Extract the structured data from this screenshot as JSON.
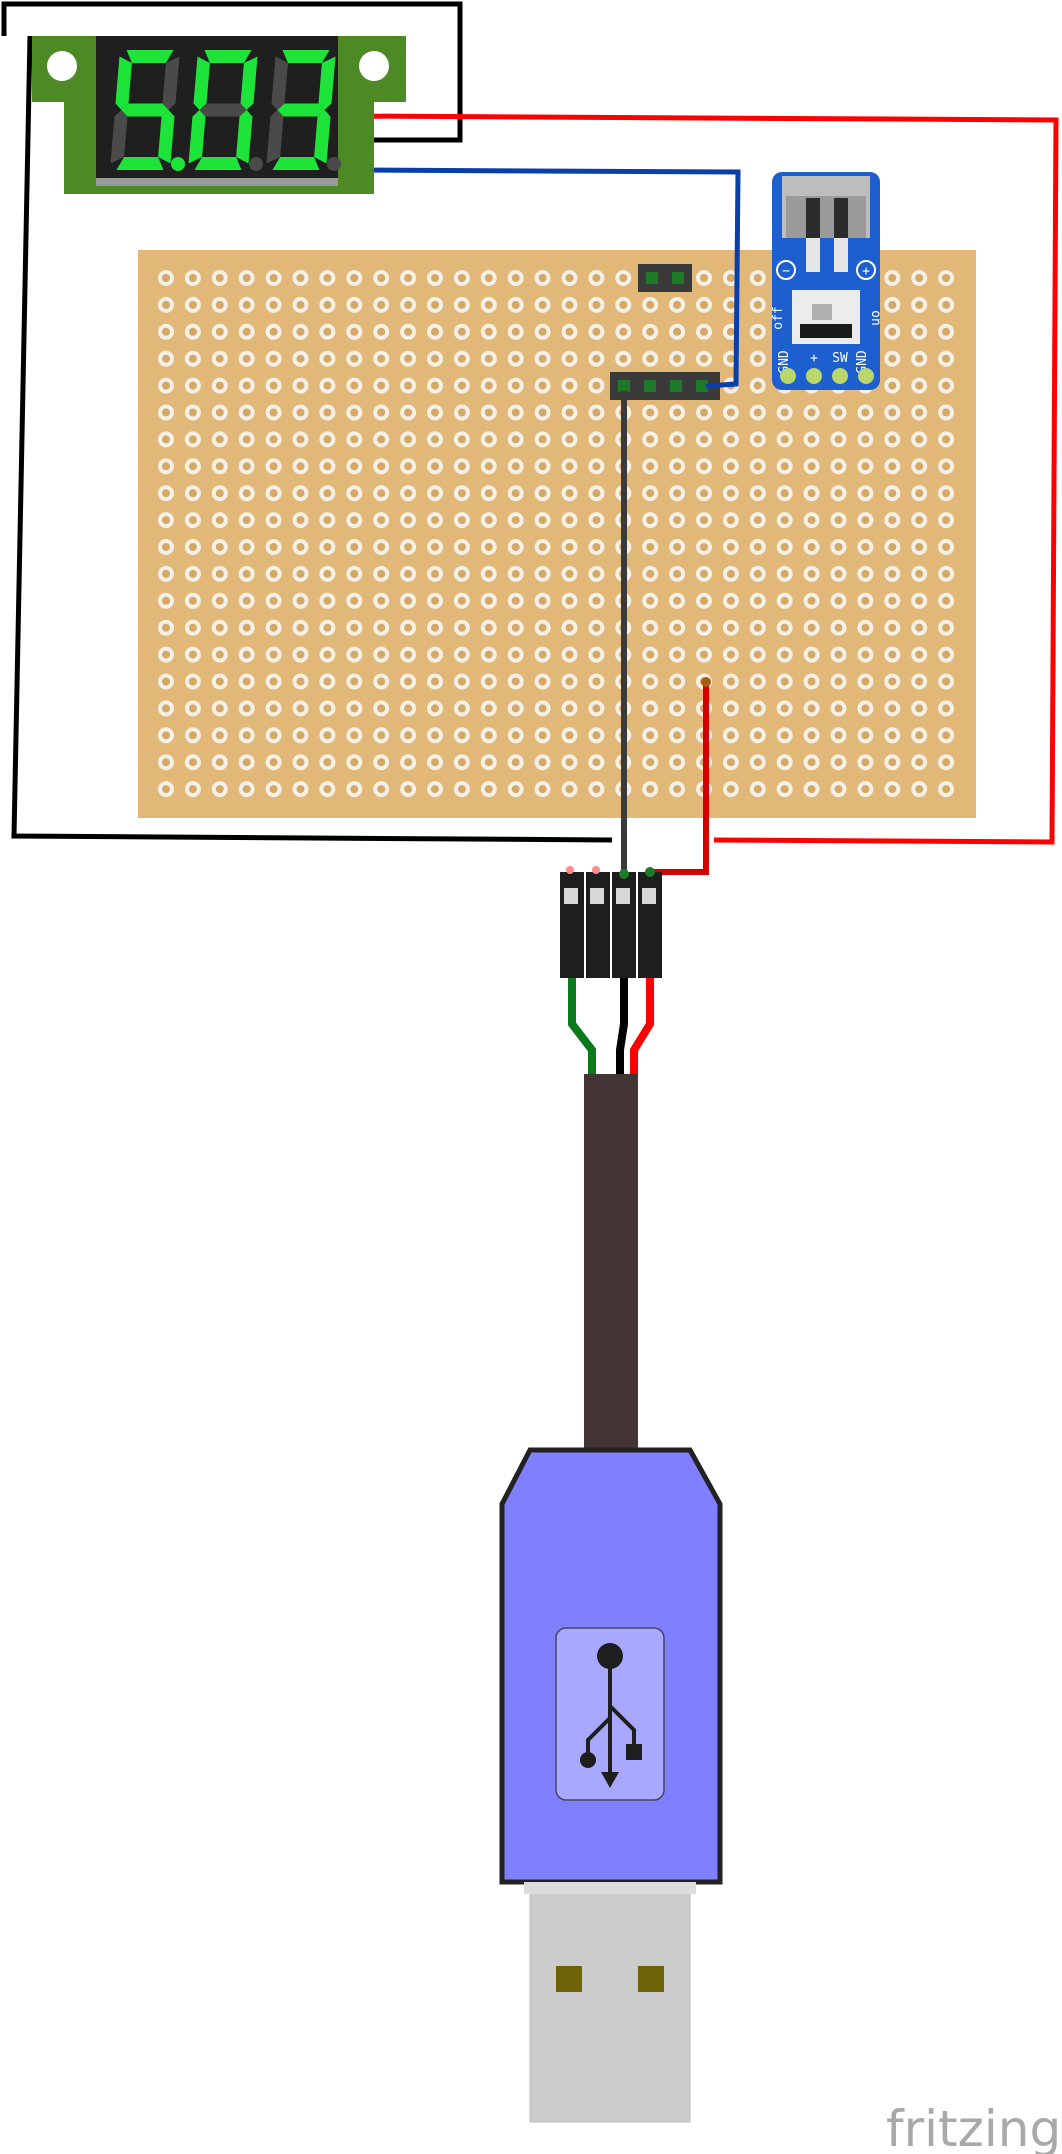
{
  "diagram": {
    "display_reading": {
      "digits": [
        "5",
        "0",
        "3"
      ],
      "decimal_after_digit": 0
    },
    "switch_module": {
      "minus_symbol": "−",
      "plus_symbol": "+",
      "off_label": "off",
      "on_label": "on",
      "pin_labels": [
        "GND",
        "+",
        "SW",
        "GND"
      ]
    },
    "wire_colors": {
      "red": "#ff0000",
      "black": "#000000",
      "blue": "#0a3ea8",
      "green": "#0a7a1a",
      "white": "#ffffff",
      "gray_jumper": "#3a3a3a"
    },
    "component_colors": {
      "display_pcb": "#4d8a26",
      "stripboard": "#e2b879",
      "switch_pcb": "#1d5fcf",
      "usb_body": "#8080ff",
      "cable": "#433535",
      "usb_plug": "#cccccc"
    },
    "usb_icon": "usb-trident-icon",
    "watermark": "fritzing"
  }
}
